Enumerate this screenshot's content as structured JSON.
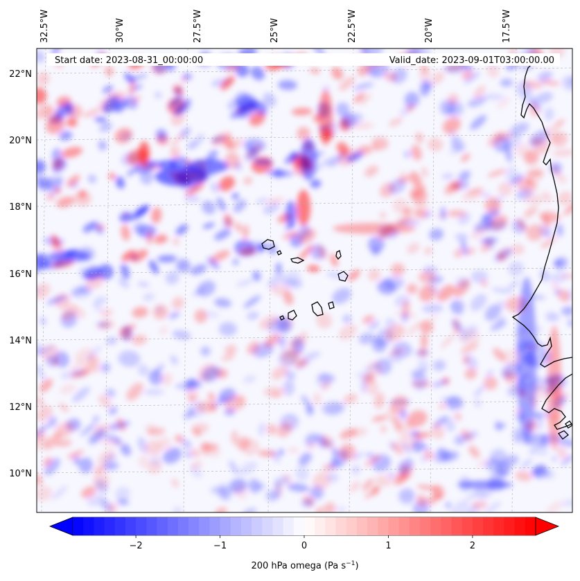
{
  "map": {
    "start_label": "Start date: 2023-08-31_00:00:00",
    "valid_label": "Valid_date: 2023-09-01T03:00:00.00",
    "lon_labels": [
      "32.5°W",
      "30°W",
      "27.5°W",
      "25°W",
      "22.5°W",
      "20°W",
      "17.5°W"
    ],
    "lat_labels": [
      "22°N",
      "20°N",
      "18°N",
      "16°N",
      "14°N",
      "12°N",
      "10°N"
    ],
    "field_colors": {
      "negative": "#0000ff",
      "zero": "#ffffff",
      "positive": "#ff0000"
    },
    "coastline_color": "#000000",
    "gridline_color": "#b0b0b0"
  },
  "colorbar": {
    "label_main": "200 hPa omega (Pa s",
    "label_sup": "−1",
    "label_end": ")",
    "tick_labels": [
      "−2",
      "−1",
      "0",
      "1",
      "2"
    ],
    "range": [
      -2.75,
      2.75
    ],
    "ticks": [
      -2,
      -1,
      0,
      1,
      2
    ],
    "extend": "both"
  }
}
